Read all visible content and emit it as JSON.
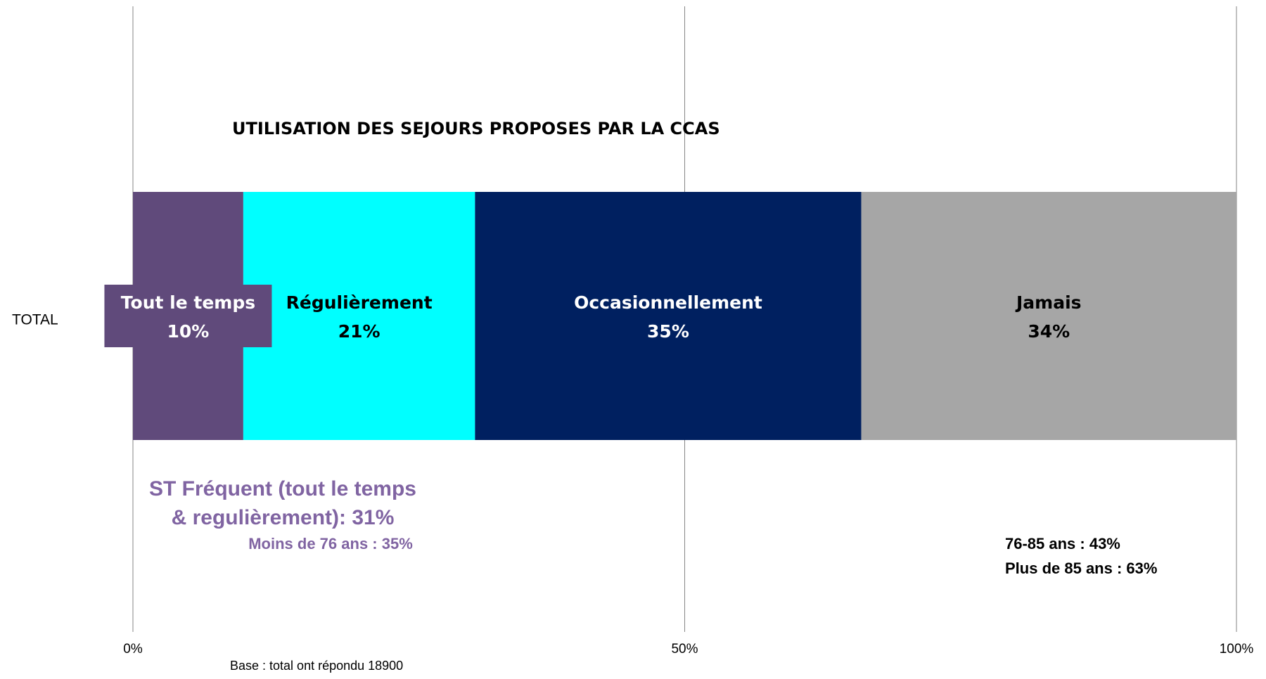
{
  "chart_data": {
    "type": "stacked-bar-horizontal",
    "title": "UTILISATION DES SEJOURS PROPOSES PAR LA CCAS",
    "categories": [
      "TOTAL"
    ],
    "series": [
      {
        "name": "Tout le temps",
        "color": "#604a7b",
        "label_color": "#ffffff",
        "values": [
          10
        ],
        "value_labels": [
          "10%"
        ]
      },
      {
        "name": "Régulièrement",
        "color": "#00ffff",
        "label_color": "#000000",
        "values": [
          21
        ],
        "value_labels": [
          "21%"
        ]
      },
      {
        "name": "Occasionnellement",
        "color": "#002060",
        "label_color": "#ffffff",
        "values": [
          35
        ],
        "value_labels": [
          "35%"
        ]
      },
      {
        "name": "Jamais",
        "color": "#a6a6a6",
        "label_color": "#000000",
        "values": [
          34
        ],
        "value_labels": [
          "34%"
        ]
      }
    ],
    "xlim": [
      0,
      100
    ],
    "xticks": [
      {
        "value": 0,
        "label": "0%"
      },
      {
        "value": 50,
        "label": "50%"
      },
      {
        "value": 100,
        "label": "100%"
      }
    ],
    "grid": true,
    "annotations": {
      "frequent": [
        "ST Fréquent (tout le temps",
        "& regulièrement): 31%"
      ],
      "moins76": "Moins de 76 ans  : 35%",
      "age76_85": "76-85 ans  : 43%",
      "plus85": "Plus de 85 ans  : 63%",
      "base": "Base : total ont répondu 18900"
    }
  }
}
